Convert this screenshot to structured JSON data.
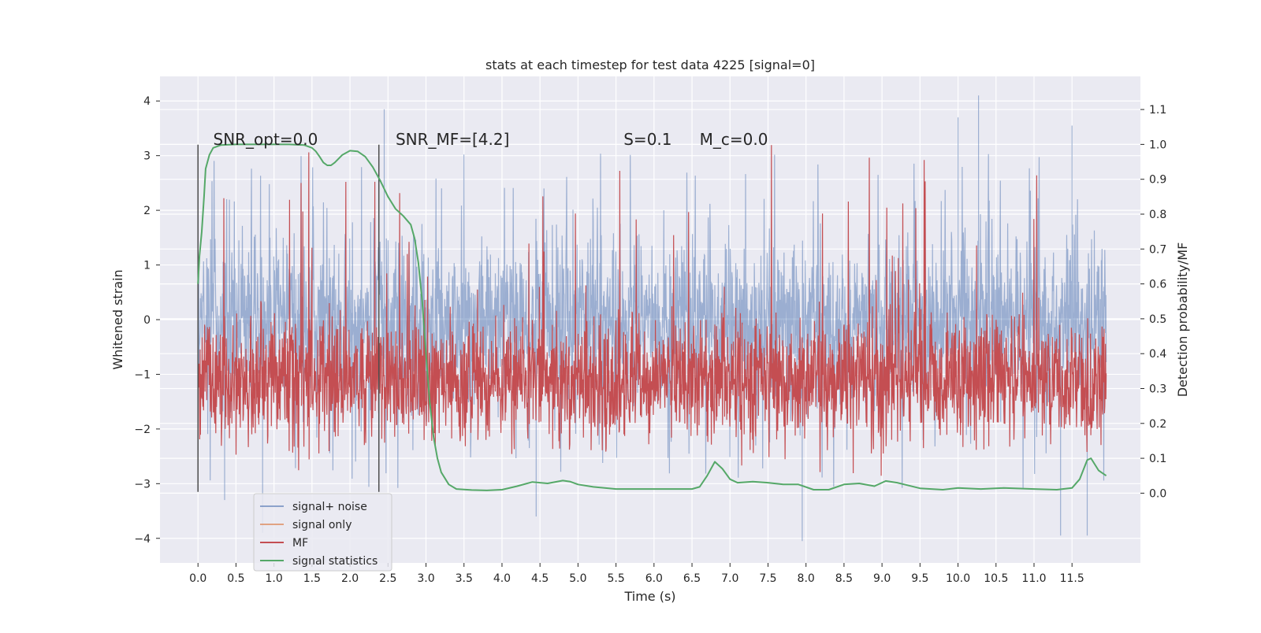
{
  "chart_data": {
    "type": "line",
    "title": "stats at each timestep for test data 4225 [signal=0]",
    "xlabel": "Time (s)",
    "ylabel": "Whitened strain",
    "ylabel_right": "Detection probability/MF",
    "xlim": [
      -0.5,
      12.4
    ],
    "ylim": [
      -4.45,
      4.45
    ],
    "ylim_right": [
      -0.2,
      1.195
    ],
    "x_ticks": [
      "0.0",
      "0.5",
      "1.0",
      "1.5",
      "2.0",
      "2.5",
      "3.0",
      "3.5",
      "4.0",
      "4.5",
      "5.0",
      "5.5",
      "6.0",
      "6.5",
      "7.0",
      "7.5",
      "8.0",
      "8.5",
      "9.0",
      "9.5",
      "10.0",
      "10.5",
      "11.0",
      "11.5"
    ],
    "y_ticks": [
      "4",
      "3",
      "2",
      "1",
      "0",
      "−1",
      "−2",
      "−3",
      "−4"
    ],
    "y_ticks_right": [
      "1.1",
      "1.0",
      "0.9",
      "0.8",
      "0.7",
      "0.6",
      "0.5",
      "0.4",
      "0.3",
      "0.2",
      "0.1",
      "0.0"
    ],
    "grid": true,
    "legend_position": "lower-left",
    "annotations": [
      {
        "text": "SNR_opt=0.0",
        "x": 0.2,
        "y": 3.3
      },
      {
        "text": "SNR_MF=[4.2]",
        "x": 2.6,
        "y": 3.3
      },
      {
        "text": "S=0.1",
        "x": 5.6,
        "y": 3.3
      },
      {
        "text": "M_c=0.0",
        "x": 6.6,
        "y": 3.3
      }
    ],
    "vlines": [
      {
        "x": 0.0,
        "ymin": -3.15,
        "ymax": 3.2
      },
      {
        "x": 2.38,
        "ymin": -3.15,
        "ymax": 3.2
      }
    ],
    "series": [
      {
        "name": "signal+ noise",
        "color": "#4c72b0",
        "axis": "left",
        "x_range": [
          0.0,
          11.95
        ],
        "typical_range": [
          -1.3,
          1.3
        ],
        "extreme_range": [
          -4.1,
          4.1
        ],
        "spikes": [
          [
            2.45,
            3.85
          ],
          [
            10.27,
            4.1
          ],
          [
            10.0,
            3.7
          ],
          [
            11.5,
            3.55
          ],
          [
            4.45,
            -3.6
          ],
          [
            7.95,
            -4.05
          ],
          [
            11.35,
            -3.95
          ],
          [
            11.7,
            -3.95
          ],
          [
            0.85,
            -3.9
          ],
          [
            0.35,
            -3.3
          ]
        ]
      },
      {
        "name": "signal only",
        "color": "#dd8452",
        "axis": "left",
        "values": []
      },
      {
        "name": "MF",
        "color": "#c44e52",
        "axis": "left",
        "x_range": [
          0.0,
          11.95
        ],
        "typical_range": [
          0.1,
          0.55
        ],
        "extreme_range": [
          0.05,
          1.05
        ]
      },
      {
        "name": "signal statistics",
        "color": "#55a868",
        "axis": "right",
        "x": [
          0.0,
          0.02,
          0.05,
          0.08,
          0.1,
          0.15,
          0.2,
          0.3,
          0.5,
          0.8,
          1.0,
          1.2,
          1.4,
          1.5,
          1.55,
          1.6,
          1.65,
          1.7,
          1.75,
          1.8,
          1.9,
          2.0,
          2.1,
          2.2,
          2.3,
          2.4,
          2.5,
          2.6,
          2.7,
          2.8,
          2.85,
          2.9,
          2.95,
          3.0,
          3.05,
          3.1,
          3.15,
          3.2,
          3.3,
          3.4,
          3.6,
          3.8,
          4.0,
          4.2,
          4.4,
          4.6,
          4.8,
          4.9,
          5.0,
          5.2,
          5.5,
          6.0,
          6.5,
          6.6,
          6.7,
          6.8,
          6.9,
          7.0,
          7.1,
          7.3,
          7.5,
          7.7,
          7.9,
          8.1,
          8.3,
          8.5,
          8.7,
          8.9,
          9.05,
          9.2,
          9.5,
          9.8,
          10.0,
          10.3,
          10.6,
          11.0,
          11.3,
          11.5,
          11.6,
          11.7,
          11.75,
          11.85,
          11.95
        ],
        "values": [
          0.6,
          0.68,
          0.75,
          0.85,
          0.93,
          0.97,
          0.99,
          0.998,
          1.0,
          1.0,
          1.0,
          1.0,
          0.998,
          0.99,
          0.98,
          0.965,
          0.948,
          0.94,
          0.94,
          0.948,
          0.97,
          0.982,
          0.98,
          0.965,
          0.935,
          0.895,
          0.85,
          0.815,
          0.795,
          0.77,
          0.73,
          0.66,
          0.55,
          0.4,
          0.26,
          0.16,
          0.1,
          0.06,
          0.025,
          0.012,
          0.009,
          0.008,
          0.01,
          0.02,
          0.032,
          0.028,
          0.036,
          0.033,
          0.025,
          0.018,
          0.012,
          0.012,
          0.012,
          0.018,
          0.05,
          0.09,
          0.07,
          0.04,
          0.03,
          0.033,
          0.03,
          0.025,
          0.025,
          0.01,
          0.01,
          0.025,
          0.028,
          0.02,
          0.035,
          0.03,
          0.014,
          0.01,
          0.015,
          0.012,
          0.015,
          0.012,
          0.01,
          0.015,
          0.04,
          0.095,
          0.1,
          0.065,
          0.05
        ]
      }
    ]
  }
}
